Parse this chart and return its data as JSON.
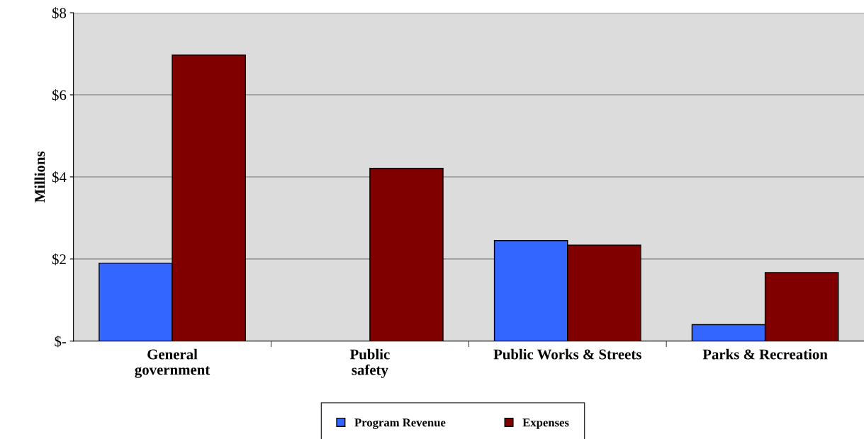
{
  "chart_data": {
    "type": "bar",
    "ylabel": "Millions",
    "categories": [
      "General\ngovernment",
      "Public\nsafety",
      "Public Works & Streets",
      "Parks & Recreation"
    ],
    "series": [
      {
        "name": "Program Revenue",
        "color": "#3366ff",
        "values": [
          1.9,
          null,
          2.45,
          0.4
        ]
      },
      {
        "name": "Expenses",
        "color": "#800000",
        "values": [
          6.97,
          4.21,
          2.34,
          1.67
        ]
      }
    ],
    "ylim": [
      0,
      8
    ],
    "yticks": [
      {
        "value": 0,
        "label": "$-"
      },
      {
        "value": 2,
        "label": "$2"
      },
      {
        "value": 4,
        "label": "$4"
      },
      {
        "value": 6,
        "label": "$6"
      },
      {
        "value": 8,
        "label": "$8"
      }
    ],
    "grid": "y",
    "legend": "bottom"
  }
}
